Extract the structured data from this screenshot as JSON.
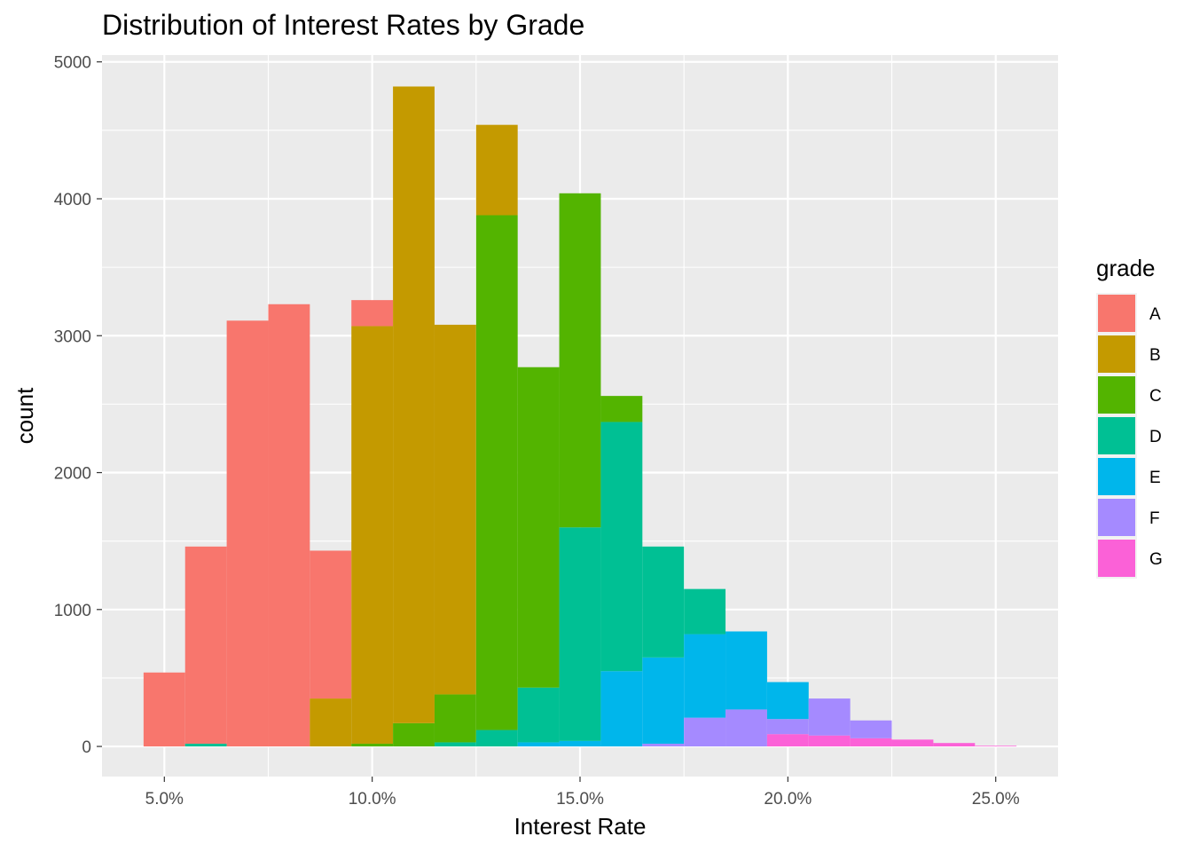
{
  "chart_data": {
    "type": "bar",
    "title": "Distribution of Interest Rates by Grade",
    "xlabel": "Interest Rate",
    "ylabel": "count",
    "stacked": true,
    "bin_width": 1.0,
    "bin_centers": [
      5,
      6,
      7,
      8,
      9,
      10,
      11,
      12,
      13,
      14,
      15,
      16,
      17,
      18,
      19,
      20,
      21,
      22,
      23,
      24,
      25
    ],
    "xlim": [
      3.5,
      26.5
    ],
    "ylim": [
      -220,
      5050
    ],
    "x_ticks": [
      5,
      10,
      15,
      20,
      25
    ],
    "x_tick_labels": [
      "5.0%",
      "10.0%",
      "15.0%",
      "20.0%",
      "25.0%"
    ],
    "y_ticks": [
      0,
      1000,
      2000,
      3000,
      4000,
      5000
    ],
    "y_tick_labels": [
      "0",
      "1000",
      "2000",
      "3000",
      "4000",
      "5000"
    ],
    "grid": true,
    "legend": {
      "title": "grade",
      "position": "right"
    },
    "series": [
      {
        "name": "A",
        "color": "#F8766D",
        "values": [
          540,
          1440,
          3110,
          3230,
          1080,
          190,
          0,
          0,
          0,
          0,
          0,
          0,
          0,
          0,
          0,
          0,
          0,
          0,
          0,
          0,
          0
        ]
      },
      {
        "name": "B",
        "color": "#C49A00",
        "values": [
          0,
          0,
          0,
          0,
          350,
          3050,
          4650,
          2700,
          660,
          0,
          0,
          0,
          0,
          0,
          0,
          0,
          0,
          0,
          0,
          0,
          0
        ]
      },
      {
        "name": "C",
        "color": "#53B400",
        "values": [
          0,
          0,
          0,
          0,
          0,
          20,
          170,
          350,
          3760,
          2340,
          2440,
          190,
          0,
          0,
          0,
          0,
          0,
          0,
          0,
          0,
          0
        ]
      },
      {
        "name": "D",
        "color": "#00C094",
        "values": [
          0,
          20,
          0,
          0,
          0,
          0,
          0,
          30,
          120,
          400,
          1560,
          1820,
          810,
          330,
          0,
          0,
          0,
          0,
          0,
          0,
          0
        ]
      },
      {
        "name": "E",
        "color": "#00B6EB",
        "values": [
          0,
          0,
          0,
          0,
          0,
          0,
          0,
          0,
          0,
          30,
          40,
          550,
          630,
          610,
          570,
          270,
          0,
          0,
          0,
          0,
          0
        ]
      },
      {
        "name": "F",
        "color": "#A58AFF",
        "values": [
          0,
          0,
          0,
          0,
          0,
          0,
          0,
          0,
          0,
          0,
          0,
          0,
          20,
          210,
          270,
          110,
          270,
          130,
          0,
          0,
          0
        ]
      },
      {
        "name": "G",
        "color": "#FB61D7",
        "values": [
          0,
          0,
          0,
          0,
          0,
          0,
          0,
          0,
          0,
          0,
          0,
          0,
          0,
          0,
          0,
          90,
          80,
          60,
          50,
          25,
          5
        ]
      }
    ]
  }
}
